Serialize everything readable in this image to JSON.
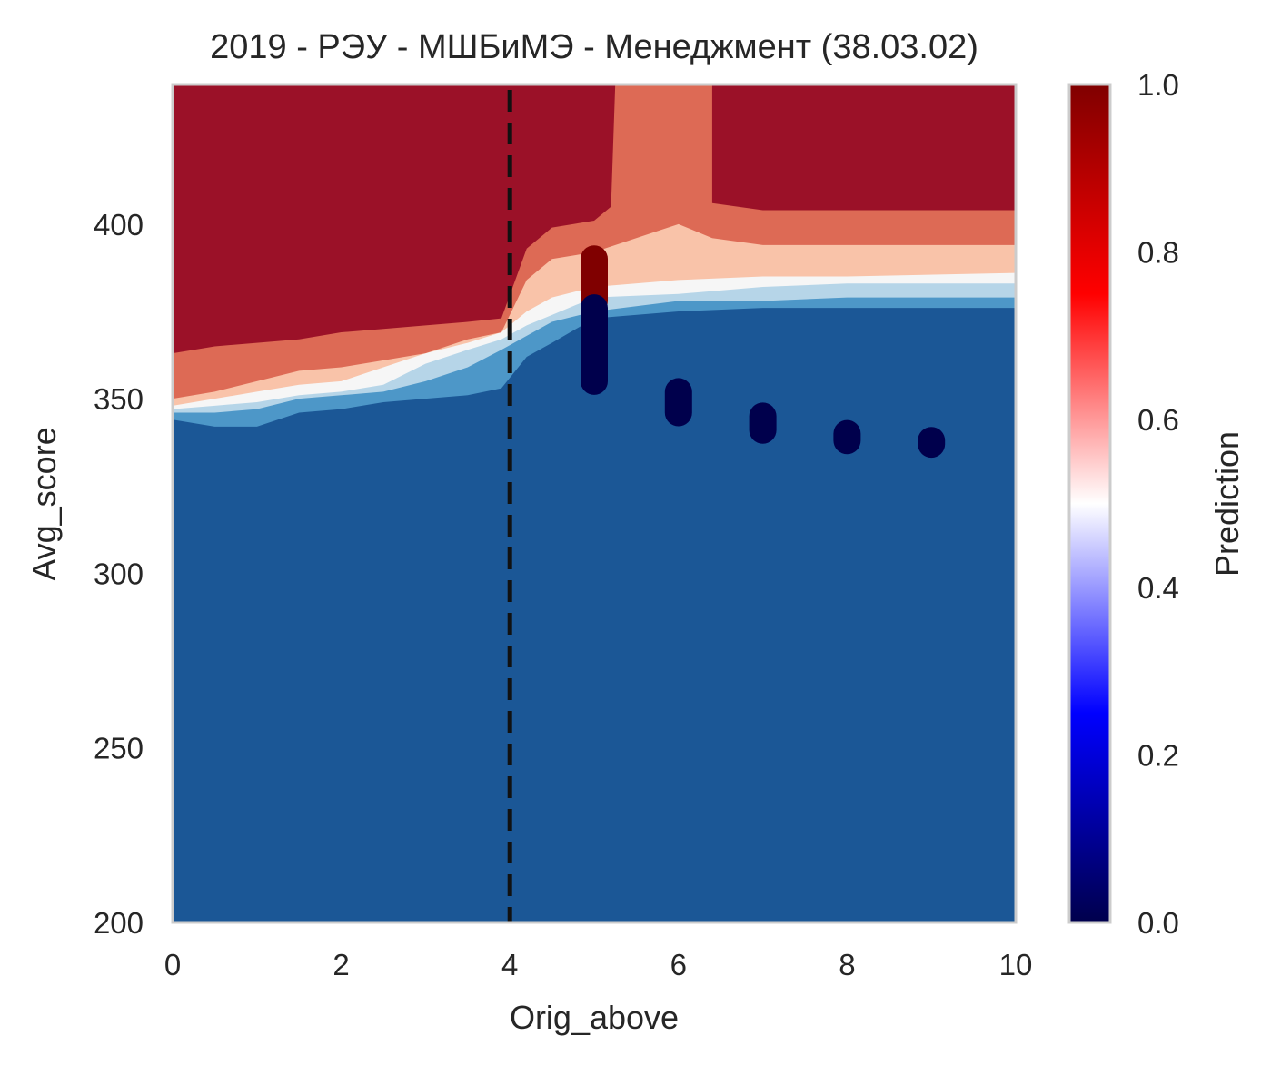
{
  "chart_data": {
    "type": "heatmap",
    "title": "2019 - РЭУ - МШБиМЭ - Менеджмент (38.03.02)",
    "xlabel": "Orig_above",
    "ylabel": "Avg_score",
    "xlim": [
      0,
      10
    ],
    "ylim": [
      200,
      440
    ],
    "x_ticks": [
      "0",
      "2",
      "4",
      "6",
      "8",
      "10"
    ],
    "y_ticks": [
      "200",
      "250",
      "300",
      "350",
      "400"
    ],
    "grid": false,
    "threshold_line": {
      "x": 4,
      "style": "dashed",
      "color": "#111111"
    },
    "contour_levels": [
      {
        "min": 0.0,
        "max": 0.2,
        "color": "#1b5796"
      },
      {
        "min": 0.2,
        "max": 0.3,
        "color": "#4d97c8"
      },
      {
        "min": 0.3,
        "max": 0.4,
        "color": "#b6d5e8"
      },
      {
        "min": 0.4,
        "max": 0.5,
        "color": "#f6f6f6"
      },
      {
        "min": 0.5,
        "max": 0.6,
        "color": "#f9c3a9"
      },
      {
        "min": 0.6,
        "max": 0.7,
        "color": "#dd6a55"
      },
      {
        "min": 0.7,
        "max": 1.0,
        "color": "#9b1128"
      }
    ],
    "decision_boundaries": [
      {
        "level": 0.2,
        "points": [
          [
            0,
            344
          ],
          [
            0.5,
            342
          ],
          [
            1,
            342
          ],
          [
            1.5,
            346
          ],
          [
            2,
            347
          ],
          [
            2.5,
            349
          ],
          [
            3,
            350
          ],
          [
            3.5,
            351
          ],
          [
            3.9,
            353
          ],
          [
            4.2,
            362
          ],
          [
            4.5,
            366
          ],
          [
            5,
            373
          ],
          [
            6,
            375
          ],
          [
            7,
            376
          ],
          [
            8,
            376
          ],
          [
            10,
            376
          ]
        ]
      },
      {
        "level": 0.3,
        "points": [
          [
            0,
            346
          ],
          [
            0.5,
            346
          ],
          [
            1,
            347
          ],
          [
            1.5,
            350
          ],
          [
            2,
            351
          ],
          [
            2.5,
            352
          ],
          [
            3,
            355
          ],
          [
            3.5,
            359
          ],
          [
            3.9,
            364
          ],
          [
            4.2,
            368
          ],
          [
            4.5,
            372
          ],
          [
            5,
            375
          ],
          [
            6,
            378
          ],
          [
            7,
            378
          ],
          [
            8,
            379
          ],
          [
            10,
            379
          ]
        ]
      },
      {
        "level": 0.4,
        "points": [
          [
            0,
            347
          ],
          [
            0.5,
            348
          ],
          [
            1,
            349
          ],
          [
            1.5,
            351
          ],
          [
            2,
            352
          ],
          [
            2.5,
            354
          ],
          [
            3,
            360
          ],
          [
            3.5,
            364
          ],
          [
            3.9,
            367
          ],
          [
            4.2,
            371
          ],
          [
            4.5,
            374
          ],
          [
            5,
            379
          ],
          [
            6,
            380
          ],
          [
            7,
            382
          ],
          [
            8,
            383
          ],
          [
            10,
            383
          ]
        ]
      },
      {
        "level": 0.5,
        "points": [
          [
            0,
            348
          ],
          [
            0.5,
            350
          ],
          [
            1,
            352
          ],
          [
            1.5,
            354
          ],
          [
            2,
            355
          ],
          [
            2.5,
            359
          ],
          [
            3,
            363
          ],
          [
            3.5,
            366
          ],
          [
            3.9,
            369
          ],
          [
            4.2,
            375
          ],
          [
            4.5,
            379
          ],
          [
            5,
            382
          ],
          [
            6,
            384
          ],
          [
            7,
            385
          ],
          [
            8,
            385
          ],
          [
            10,
            386
          ]
        ]
      },
      {
        "level": 0.6,
        "points": [
          [
            0,
            350
          ],
          [
            0.5,
            352
          ],
          [
            1,
            355
          ],
          [
            1.5,
            358
          ],
          [
            2,
            359
          ],
          [
            2.5,
            361
          ],
          [
            3,
            363
          ],
          [
            3.5,
            367
          ],
          [
            3.9,
            369
          ],
          [
            4.2,
            384
          ],
          [
            4.5,
            390
          ],
          [
            5,
            392
          ],
          [
            6,
            400
          ],
          [
            6.4,
            396
          ],
          [
            7,
            394
          ],
          [
            8,
            394
          ],
          [
            10,
            394
          ]
        ]
      },
      {
        "level": 0.7,
        "points": [
          [
            0,
            363
          ],
          [
            0.5,
            365
          ],
          [
            1,
            366
          ],
          [
            1.5,
            367
          ],
          [
            2,
            369
          ],
          [
            2.5,
            370
          ],
          [
            3,
            371
          ],
          [
            3.5,
            372
          ],
          [
            3.9,
            373
          ],
          [
            4.2,
            393
          ],
          [
            4.5,
            399
          ],
          [
            5,
            401
          ],
          [
            5.2,
            405
          ],
          [
            5.25,
            440
          ],
          [
            6.4,
            440
          ],
          [
            6.4,
            406
          ],
          [
            7,
            404
          ],
          [
            8,
            404
          ],
          [
            10,
            404
          ]
        ]
      }
    ],
    "points": [
      {
        "x": 5,
        "y_min": 378,
        "y_max": 390,
        "value": 1.0
      },
      {
        "x": 5,
        "y_min": 355,
        "y_max": 376,
        "value": 0.0
      },
      {
        "x": 6,
        "y_min": 346,
        "y_max": 352,
        "value": 0.0
      },
      {
        "x": 7,
        "y_min": 341,
        "y_max": 345,
        "value": 0.0
      },
      {
        "x": 8,
        "y_min": 338,
        "y_max": 340,
        "value": 0.0
      },
      {
        "x": 9,
        "y_min": 337,
        "y_max": 338,
        "value": 0.0
      }
    ],
    "colorbar": {
      "label": "Prediction",
      "ticks": [
        "0.0",
        "0.2",
        "0.4",
        "0.6",
        "0.8",
        "1.0"
      ],
      "range": [
        0,
        1
      ],
      "colormap": "seismic"
    }
  }
}
